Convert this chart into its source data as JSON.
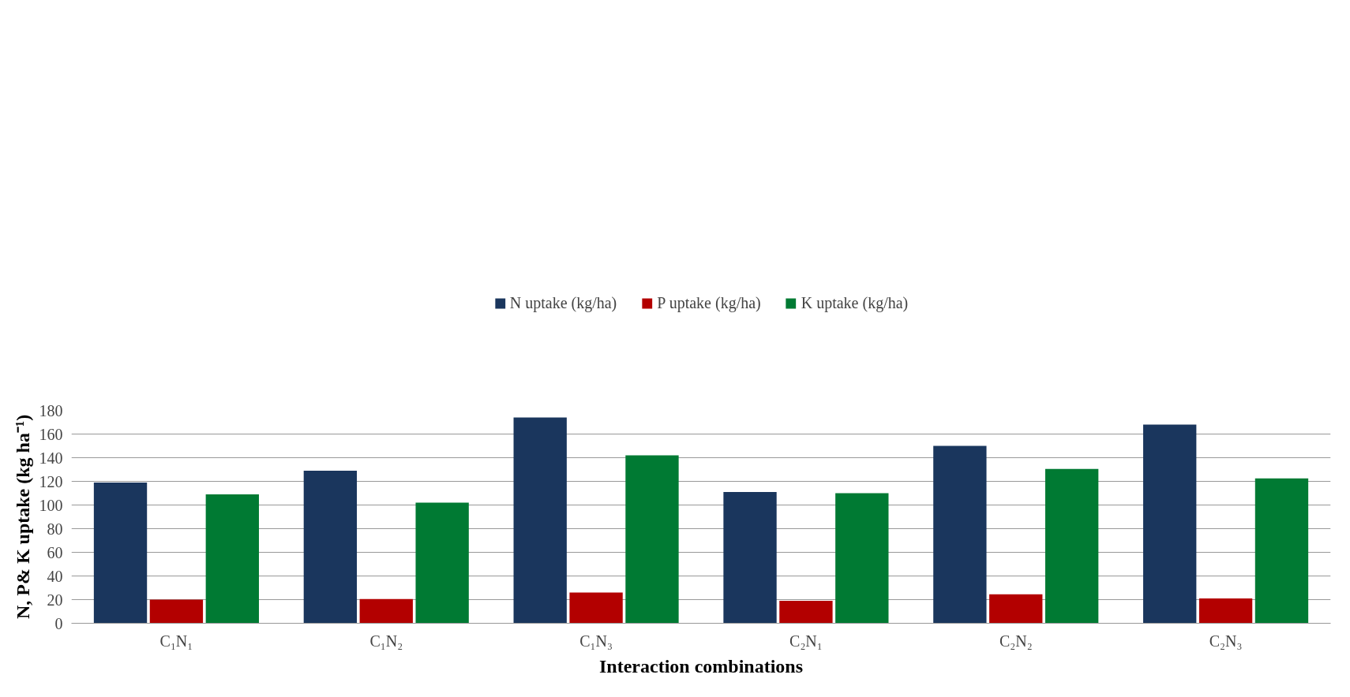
{
  "chart_data": {
    "type": "bar",
    "xlabel": "Interaction combinations",
    "ylabel": "N, P& K uptake (kg ha⁻¹)",
    "categories": [
      "C₁N₁",
      "C₁N₂",
      "C₁N₃",
      "C₂N₁",
      "C₂N₂",
      "C₂N₃"
    ],
    "series": [
      {
        "name": "N uptake (kg/ha)",
        "color": "#1a365d",
        "values": [
          119,
          129,
          174,
          111,
          150,
          168
        ]
      },
      {
        "name": "P uptake (kg/ha)",
        "color": "#b30000",
        "values": [
          20,
          20.5,
          26,
          19,
          24.5,
          21
        ]
      },
      {
        "name": "K uptake (kg/ha)",
        "color": "#007a33",
        "values": [
          109,
          102,
          142,
          110,
          130.5,
          122.5
        ]
      }
    ],
    "ylim": [
      0,
      180
    ],
    "yticks": [
      0,
      20,
      40,
      60,
      80,
      100,
      120,
      140,
      160,
      180
    ],
    "grid": "y",
    "legend": "top"
  }
}
